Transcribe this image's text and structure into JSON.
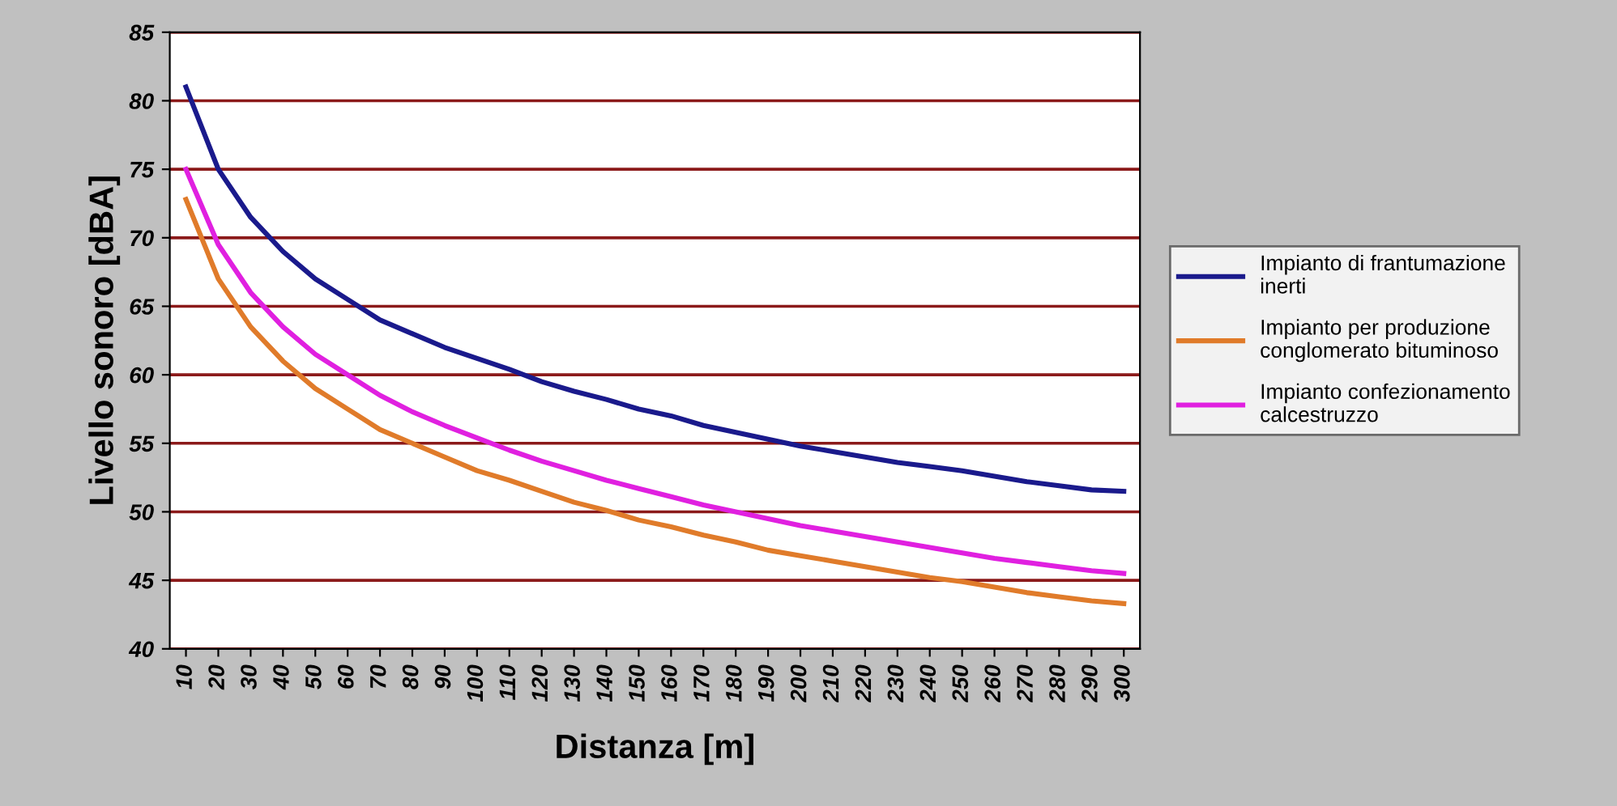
{
  "chart_data": {
    "type": "line",
    "xlabel": "Distanza [m]",
    "ylabel": "Livello sonoro [dBA]",
    "categories": [
      "10",
      "20",
      "30",
      "40",
      "50",
      "60",
      "70",
      "80",
      "90",
      "100",
      "110",
      "120",
      "130",
      "140",
      "150",
      "160",
      "170",
      "180",
      "190",
      "200",
      "210",
      "220",
      "230",
      "240",
      "250",
      "260",
      "270",
      "280",
      "290",
      "300"
    ],
    "series": [
      {
        "name": "Impianto di frantumazione inerti",
        "color": "#1a1a8c",
        "values": [
          81,
          75,
          71.5,
          69,
          67,
          65.5,
          64,
          63,
          62,
          61.2,
          60.4,
          59.5,
          58.8,
          58.2,
          57.5,
          57,
          56.3,
          55.8,
          55.3,
          54.8,
          54.4,
          54,
          53.6,
          53.3,
          53,
          52.6,
          52.2,
          51.9,
          51.6,
          51.5
        ]
      },
      {
        "name": "Impianto per produzione conglomerato bituminoso",
        "color": "#e07b2a",
        "values": [
          72.8,
          67,
          63.5,
          61,
          59,
          57.5,
          56,
          55,
          54,
          53,
          52.3,
          51.5,
          50.7,
          50.1,
          49.4,
          48.9,
          48.3,
          47.8,
          47.2,
          46.8,
          46.4,
          46,
          45.6,
          45.2,
          44.9,
          44.5,
          44.1,
          43.8,
          43.5,
          43.3
        ]
      },
      {
        "name": "Impianto confezionamento calcestruzzo",
        "color": "#e020e0",
        "values": [
          75,
          69.5,
          66,
          63.5,
          61.5,
          60,
          58.5,
          57.3,
          56.3,
          55.4,
          54.5,
          53.7,
          53,
          52.3,
          51.7,
          51.1,
          50.5,
          50,
          49.5,
          49,
          48.6,
          48.2,
          47.8,
          47.4,
          47,
          46.6,
          46.3,
          46,
          45.7,
          45.5
        ]
      }
    ],
    "ylim": [
      40,
      85
    ],
    "yticks": [
      40,
      45,
      50,
      55,
      60,
      65,
      70,
      75,
      80,
      85
    ],
    "grid": "y",
    "legend": "right",
    "marker": "none",
    "line_style": "solid"
  }
}
